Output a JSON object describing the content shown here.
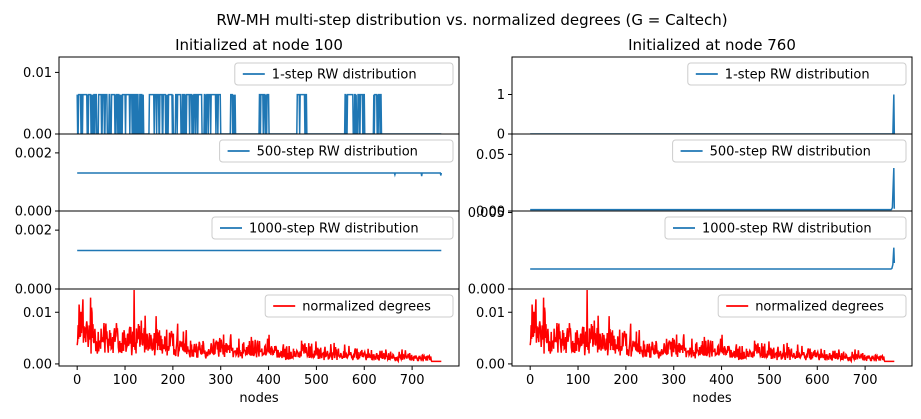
{
  "figure": {
    "suptitle": "RW-MH multi-step distribution vs. normalized degrees (G = Caltech)",
    "colors": {
      "rw": "#1f77b4",
      "deg": "#ff0000",
      "axis": "#000000"
    }
  },
  "chart_data": [
    {
      "type": "line",
      "column": "left",
      "title": "Initialized at node 100",
      "xlim": [
        -38,
        798
      ],
      "ylim": [
        0,
        0.0125
      ],
      "yticks": [
        {
          "v": 0,
          "label": "0.00"
        },
        {
          "v": 0.01,
          "label": "0.01"
        }
      ],
      "series": [
        {
          "name": "1-step RW distribution",
          "color": "#1f77b4",
          "kind": "spikes",
          "n": 762,
          "value": 0.0064,
          "spikes": [
            [
              0,
              40
            ],
            [
              45,
              140
            ],
            [
              150,
              200
            ],
            [
              205,
              260
            ],
            [
              265,
              300
            ],
            [
              320,
              330
            ],
            [
              380,
              400
            ],
            [
              460,
              480
            ],
            [
              560,
              600
            ],
            [
              620,
              635
            ]
          ]
        }
      ]
    },
    {
      "type": "line",
      "column": "left",
      "title": "",
      "xlim": [
        -38,
        798
      ],
      "ylim": [
        0,
        0.00265
      ],
      "yticks": [
        {
          "v": 0,
          "label": "0.000"
        },
        {
          "v": 0.002,
          "label": "0.002"
        }
      ],
      "series": [
        {
          "name": "500-step RW distribution",
          "color": "#1f77b4",
          "kind": "flat",
          "n": 762,
          "value": 0.00131,
          "dips": [
            [
              664,
              0.00125
            ],
            [
              720,
              0.0012
            ],
            [
              760,
              0.00122
            ]
          ]
        }
      ]
    },
    {
      "type": "line",
      "column": "left",
      "title": "",
      "xlim": [
        -38,
        798
      ],
      "ylim": [
        0,
        0.00265
      ],
      "yticks": [
        {
          "v": 0,
          "label": "0.000"
        },
        {
          "v": 0.002,
          "label": "0.002"
        }
      ],
      "series": [
        {
          "name": "1000-step RW distribution",
          "color": "#1f77b4",
          "kind": "flat",
          "n": 762,
          "value": 0.00131,
          "dips": []
        }
      ]
    },
    {
      "type": "line",
      "column": "left",
      "title": "",
      "xlabel": "nodes",
      "xlim": [
        -38,
        798
      ],
      "ylim": [
        -0.0004,
        0.0145
      ],
      "yticks": [
        {
          "v": 0,
          "label": "0.00"
        },
        {
          "v": 0.01,
          "label": "0.01"
        }
      ],
      "xticks": [
        0,
        100,
        200,
        300,
        400,
        500,
        600,
        700
      ],
      "series": [
        {
          "name": "normalized degrees",
          "color": "#ff0000",
          "kind": "degree",
          "n": 762
        }
      ]
    },
    {
      "type": "line",
      "column": "right",
      "title": "Initialized at node 760",
      "xlim": [
        -38,
        798
      ],
      "ylim": [
        0,
        1.95
      ],
      "yticks": [
        {
          "v": 0,
          "label": "0"
        },
        {
          "v": 1,
          "label": "1"
        }
      ],
      "series": [
        {
          "name": "1-step RW distribution",
          "color": "#1f77b4",
          "kind": "endspike",
          "n": 762,
          "value": 0.0,
          "end": [
            [
              758,
              0.0
            ],
            [
              760,
              1.0
            ],
            [
              761,
              0.0
            ]
          ]
        }
      ]
    },
    {
      "type": "line",
      "column": "right",
      "title": "",
      "xlim": [
        -38,
        798
      ],
      "ylim": [
        0,
        0.068
      ],
      "yticks": [
        {
          "v": 0,
          "label": "0.00"
        },
        {
          "v": 0.05,
          "label": "0.05"
        }
      ],
      "series": [
        {
          "name": "500-step RW distribution",
          "color": "#1f77b4",
          "kind": "endspike",
          "n": 762,
          "value": 0.0012,
          "end": [
            [
              755,
              0.0013
            ],
            [
              757,
              0.003
            ],
            [
              760,
              0.038
            ],
            [
              761,
              0.002
            ]
          ]
        }
      ]
    },
    {
      "type": "line",
      "column": "right",
      "title": "",
      "xlim": [
        -38,
        798
      ],
      "ylim": [
        0,
        0.0051
      ],
      "yticks": [
        {
          "v": 0,
          "label": "0.000"
        },
        {
          "v": 0.005,
          "label": "0.005"
        }
      ],
      "series": [
        {
          "name": "1000-step RW distribution",
          "color": "#1f77b4",
          "kind": "endspike",
          "n": 762,
          "value": 0.00131,
          "end": [
            [
              756,
              0.00135
            ],
            [
              758,
              0.0016
            ],
            [
              760,
              0.0027
            ],
            [
              761,
              0.0017
            ]
          ]
        }
      ]
    },
    {
      "type": "line",
      "column": "right",
      "title": "",
      "xlabel": "nodes",
      "xlim": [
        -38,
        798
      ],
      "ylim": [
        -0.0004,
        0.0145
      ],
      "yticks": [
        {
          "v": 0,
          "label": "0.00"
        },
        {
          "v": 0.01,
          "label": "0.01"
        }
      ],
      "xticks": [
        0,
        100,
        200,
        300,
        400,
        500,
        600,
        700
      ],
      "series": [
        {
          "name": "normalized degrees",
          "color": "#ff0000",
          "kind": "degree",
          "n": 762
        }
      ]
    }
  ]
}
